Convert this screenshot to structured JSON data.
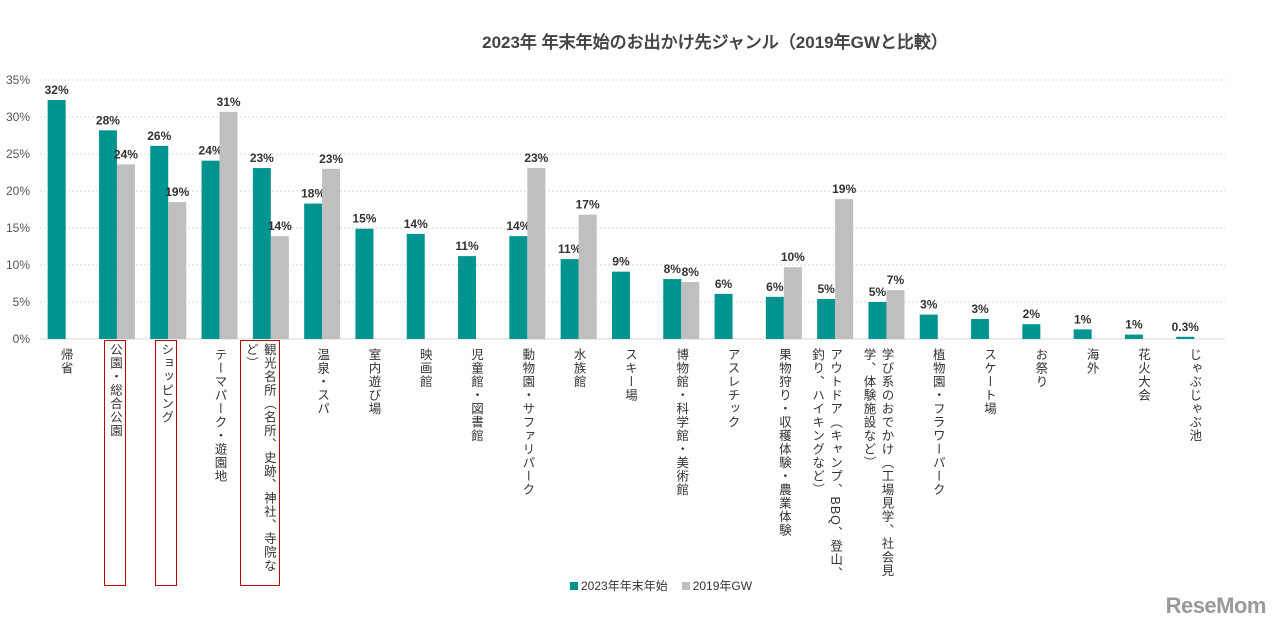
{
  "chart_data": {
    "type": "bar",
    "title": "2023年 年末年始のお出かけ先ジャンル（2019年GWと比較）",
    "categories": [
      "帰省",
      "公園・総合公園",
      "ショッピング",
      "テーマパーク・遊園地",
      "観光名所（名所、史跡、神社、寺院など）",
      "温泉・スパ",
      "室内遊び場",
      "映画館",
      "児童館・図書館",
      "動物園・サファリパーク",
      "水族館",
      "スキー場",
      "博物館・科学館・美術館",
      "アスレチック",
      "果物狩り・収穫体験・農業体験",
      "アウトドア（キャンプ、BBQ、登山、釣り、ハイキングなど）",
      "学び系のおでかけ（工場見学、社会見学、体験施設など）",
      "植物園・フラワーパーク",
      "スケート場",
      "お祭り",
      "海外",
      "花火大会",
      "じゃぶじゃぶ池"
    ],
    "highlighted_categories": [
      "公園・総合公園",
      "ショッピング",
      "観光名所（名所、史跡、神社、寺院など）"
    ],
    "series": [
      {
        "name": "2023年年末年始",
        "color": "#009490",
        "values": [
          32.3,
          28.2,
          26.1,
          24.1,
          23.1,
          18.3,
          14.9,
          14.2,
          11.2,
          13.9,
          10.8,
          9.1,
          8.1,
          6.1,
          5.7,
          5.4,
          5.0,
          3.3,
          2.7,
          2.0,
          1.3,
          0.6,
          0.3
        ],
        "labels": [
          "32%",
          "28%",
          "26%",
          "24%",
          "23%",
          "18%",
          "15%",
          "14%",
          "11%",
          "14%",
          "11%",
          "9%",
          "8%",
          "6%",
          "6%",
          "5%",
          "5%",
          "3%",
          "3%",
          "2%",
          "1%",
          "1%",
          "0.3%"
        ]
      },
      {
        "name": "2019年GW",
        "color": "#bfbfbf",
        "values": [
          null,
          23.6,
          18.5,
          30.7,
          13.9,
          23.0,
          null,
          null,
          null,
          23.1,
          16.8,
          null,
          7.7,
          null,
          9.7,
          18.9,
          6.6,
          null,
          null,
          null,
          null,
          null,
          null
        ],
        "labels": [
          null,
          "24%",
          "19%",
          "31%",
          "14%",
          "23%",
          null,
          null,
          null,
          "23%",
          "17%",
          null,
          "8%",
          null,
          "10%",
          "19%",
          "7%",
          null,
          null,
          null,
          null,
          null,
          null
        ]
      }
    ],
    "ylim": [
      0,
      35
    ],
    "yticks": [
      "0%",
      "5%",
      "10%",
      "15%",
      "20%",
      "25%",
      "30%",
      "35%"
    ],
    "grid": true,
    "legend": "bottom"
  },
  "logo": "ReseMom"
}
